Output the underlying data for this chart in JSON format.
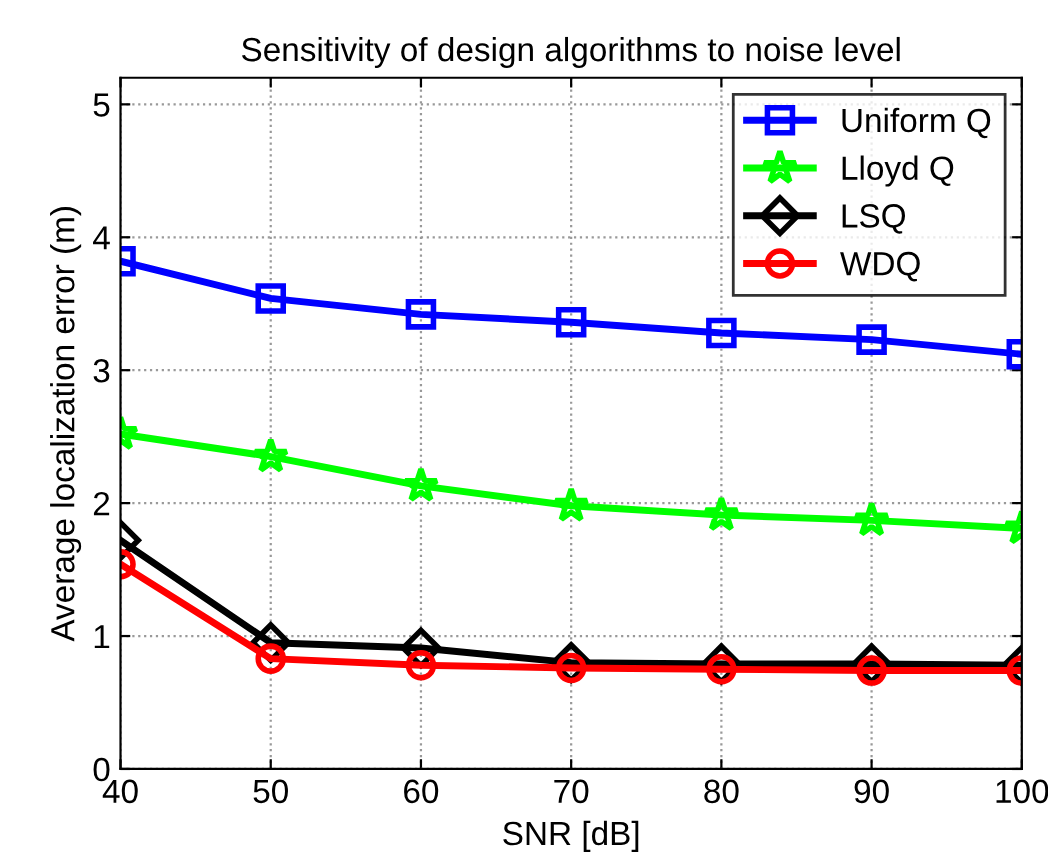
{
  "chart_data": {
    "type": "line",
    "title": "Sensitivity of design algorithms to noise level",
    "xlabel": "SNR [dB]",
    "ylabel": "Average localization error (m)",
    "x": [
      40,
      50,
      60,
      70,
      80,
      90,
      100
    ],
    "series": [
      {
        "name": "Uniform Q",
        "color": "#0000ff",
        "marker": "square",
        "values": [
          3.82,
          3.54,
          3.42,
          3.36,
          3.28,
          3.23,
          3.12
        ]
      },
      {
        "name": "Lloyd Q",
        "color": "#00ff00",
        "marker": "star",
        "values": [
          2.52,
          2.35,
          2.13,
          1.98,
          1.91,
          1.87,
          1.81
        ]
      },
      {
        "name": "LSQ",
        "color": "#000000",
        "marker": "diamond",
        "values": [
          1.72,
          0.95,
          0.91,
          0.8,
          0.79,
          0.79,
          0.78
        ]
      },
      {
        "name": "WDQ",
        "color": "#ff0000",
        "marker": "circle",
        "values": [
          1.54,
          0.83,
          0.78,
          0.76,
          0.75,
          0.74,
          0.74
        ]
      }
    ],
    "xlim": [
      40,
      100
    ],
    "xticks": [
      40,
      50,
      60,
      70,
      80,
      90,
      100
    ],
    "ylim": [
      0,
      5.2
    ],
    "yticks": [
      0,
      1,
      2,
      3,
      4,
      5
    ],
    "grid": true,
    "legend": "top right",
    "line_style": "solid"
  }
}
